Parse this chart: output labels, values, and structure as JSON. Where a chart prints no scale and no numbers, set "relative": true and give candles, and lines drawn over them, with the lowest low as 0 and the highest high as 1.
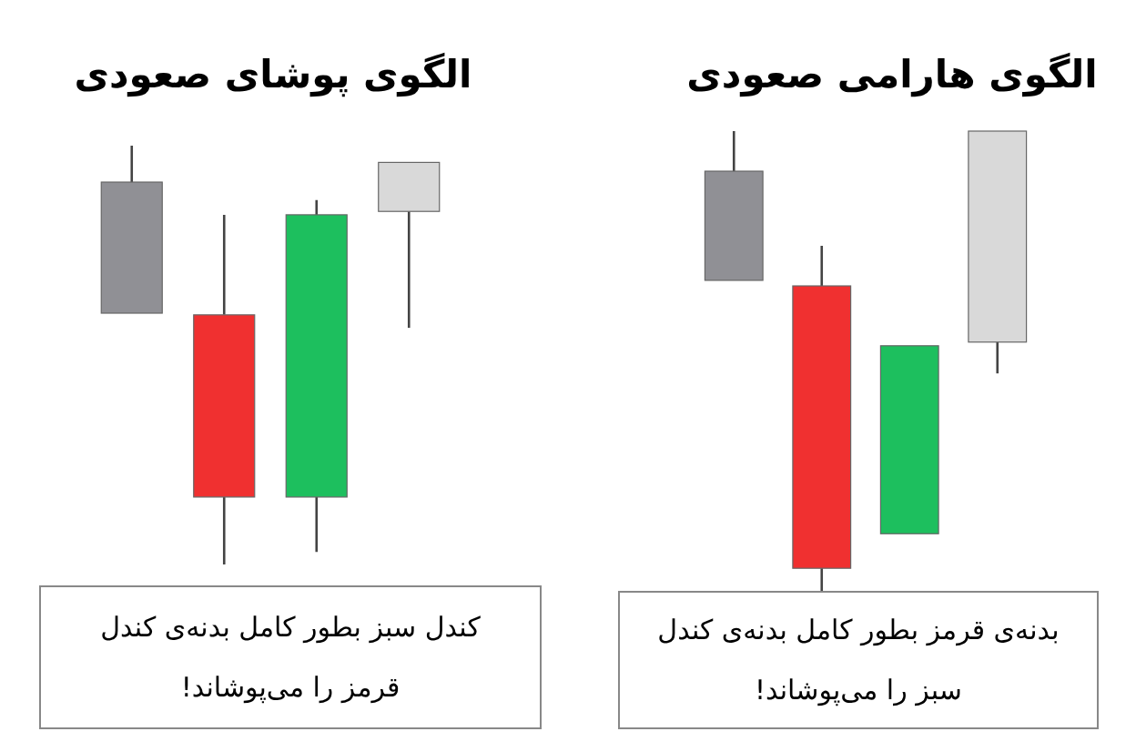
{
  "chart_data": [
    {
      "type": "candlestick",
      "relative": true,
      "title": "الگوی پوشای صعودی",
      "categories": [
        null,
        null,
        null,
        null
      ],
      "ohlc": [
        [
          0.913,
          1,
          0.6,
          0.6
        ],
        [
          0.596,
          0.835,
          0,
          0.161
        ],
        [
          0.161,
          0.87,
          0.03,
          0.835
        ],
        [
          0.843,
          0.96,
          0.565,
          0.96
        ]
      ],
      "colors": [
        "#909095",
        "#f03030",
        "#1dbf5e",
        "#d9d9d9"
      ],
      "annotations": [
        "کندل سبز بطور کامل بدنه‌ی کندل قرمز را می‌پوشاند!"
      ]
    },
    {
      "type": "candlestick",
      "relative": true,
      "title": "الگوی هارامی صعودی",
      "categories": [
        null,
        null,
        null,
        null
      ],
      "ohlc": [
        [
          0.913,
          1,
          0.676,
          0.676
        ],
        [
          0.664,
          0.751,
          0,
          0.051
        ],
        [
          0.126,
          0.534,
          0.126,
          0.534
        ],
        [
          0.542,
          1,
          0.474,
          1
        ]
      ],
      "colors": [
        "#909095",
        "#f03030",
        "#1dbf5e",
        "#d9d9d9"
      ],
      "annotations": [
        "بدنه‌ی قرمز بطور کامل بدنه‌ی کندل سبز را می‌پوشاند!"
      ]
    }
  ]
}
